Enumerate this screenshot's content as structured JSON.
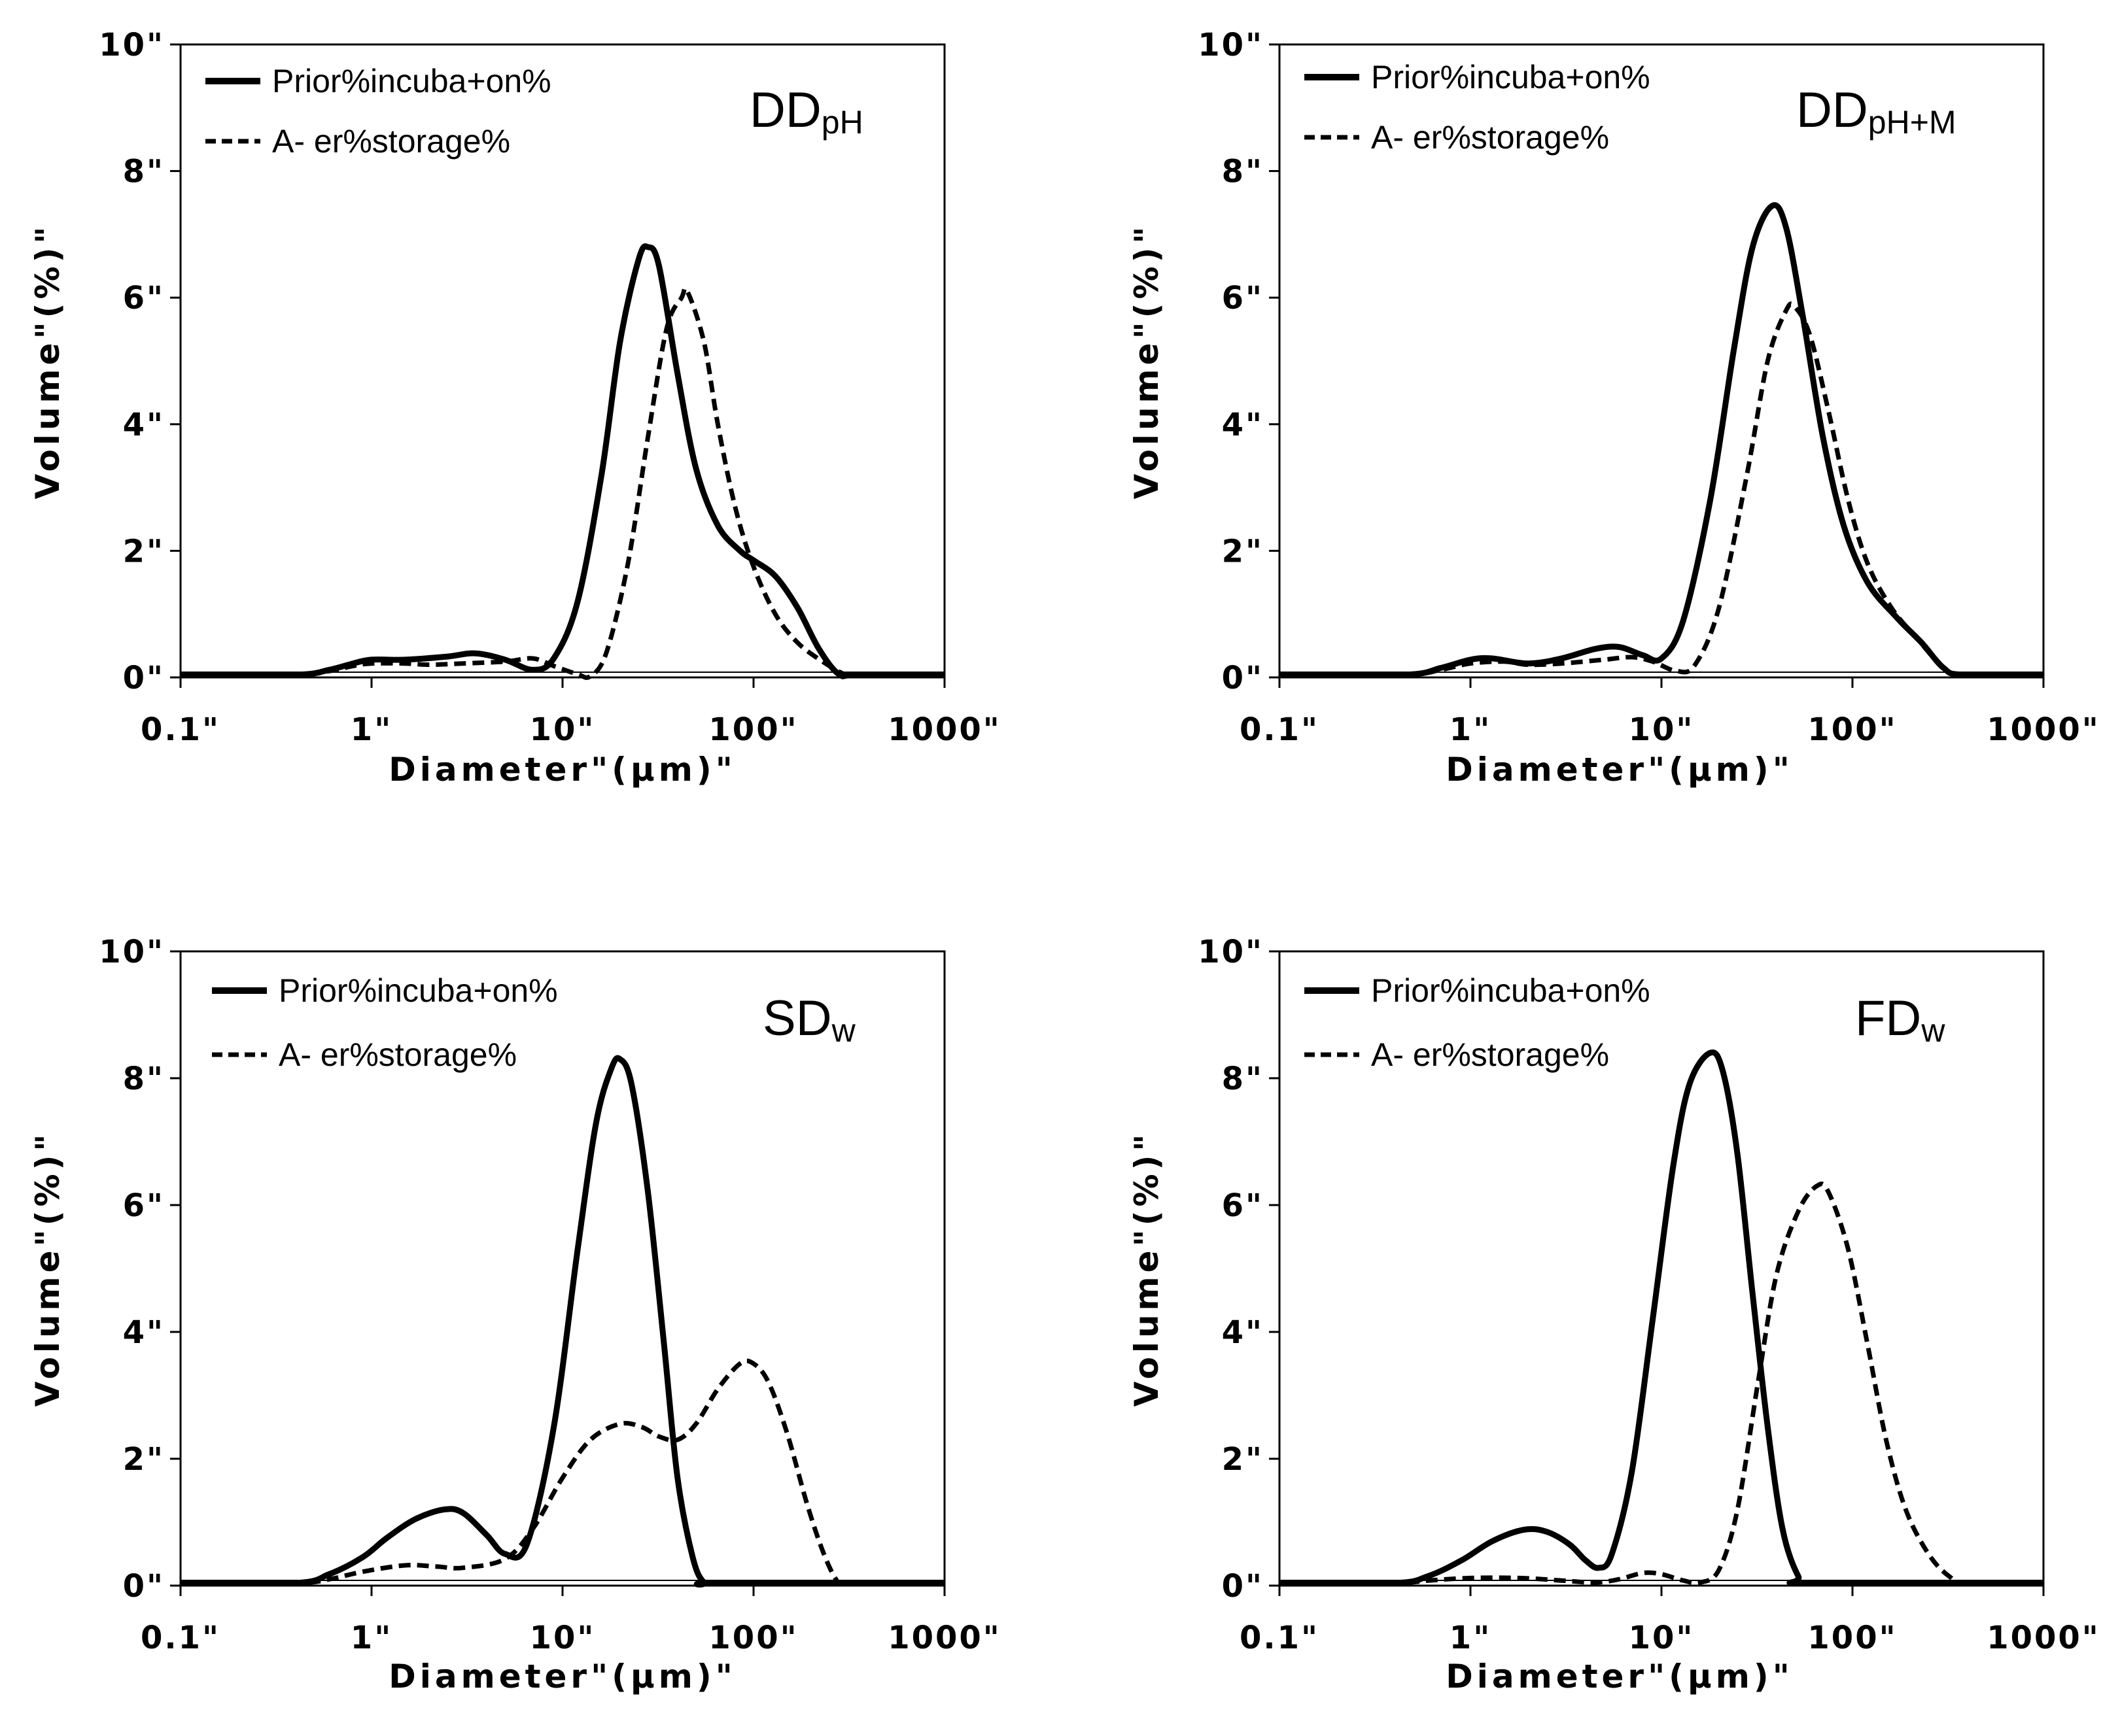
{
  "chart_data": [
    {
      "type": "line",
      "panel_label": "DD",
      "panel_subscript": "pH",
      "xscale": "log",
      "xlim": [
        0.1,
        1000
      ],
      "ylim": [
        0,
        10
      ],
      "xlabel": "Diameter\"(µm)\"",
      "ylabel": "Volume\"(%)\"",
      "x_ticks": [
        "0.1\"",
        "1\"",
        "10\"",
        "100\"",
        "1000\""
      ],
      "y_ticks": [
        "0\"",
        "2\"",
        "4\"",
        "6\"",
        "8\"",
        "10\""
      ],
      "legend": [
        {
          "label": "Prior%incuba+on%",
          "style": "solid"
        },
        {
          "label": "A- er%storage%",
          "style": "dashed"
        }
      ],
      "series": [
        {
          "name": "Prior%incuba+on%",
          "style": "solid",
          "points": [
            [
              0.1,
              0
            ],
            [
              0.4,
              0
            ],
            [
              0.6,
              0.12
            ],
            [
              0.8,
              0.22
            ],
            [
              1,
              0.28
            ],
            [
              1.5,
              0.28
            ],
            [
              2.5,
              0.33
            ],
            [
              3.5,
              0.38
            ],
            [
              5,
              0.28
            ],
            [
              7,
              0.12
            ],
            [
              9,
              0.3
            ],
            [
              12,
              1.2
            ],
            [
              16,
              3.2
            ],
            [
              20,
              5.3
            ],
            [
              25,
              6.6
            ],
            [
              28,
              6.8
            ],
            [
              32,
              6.5
            ],
            [
              40,
              4.8
            ],
            [
              50,
              3.3
            ],
            [
              65,
              2.4
            ],
            [
              85,
              2.0
            ],
            [
              100,
              1.85
            ],
            [
              130,
              1.6
            ],
            [
              170,
              1.1
            ],
            [
              220,
              0.45
            ],
            [
              280,
              0.05
            ],
            [
              350,
              0
            ],
            [
              1000,
              0
            ]
          ]
        },
        {
          "name": "A- er%storage%",
          "style": "dashed",
          "points": [
            [
              0.1,
              0
            ],
            [
              0.4,
              0
            ],
            [
              0.6,
              0.1
            ],
            [
              0.8,
              0.18
            ],
            [
              1,
              0.22
            ],
            [
              1.5,
              0.22
            ],
            [
              2,
              0.2
            ],
            [
              3,
              0.22
            ],
            [
              5,
              0.25
            ],
            [
              7,
              0.3
            ],
            [
              9,
              0.18
            ],
            [
              12,
              0.05
            ],
            [
              14,
              0.02
            ],
            [
              17,
              0.4
            ],
            [
              22,
              1.8
            ],
            [
              28,
              3.8
            ],
            [
              35,
              5.5
            ],
            [
              42,
              6.0
            ],
            [
              45,
              6.1
            ],
            [
              55,
              5.3
            ],
            [
              65,
              4.0
            ],
            [
              80,
              2.7
            ],
            [
              100,
              1.75
            ],
            [
              130,
              1.0
            ],
            [
              170,
              0.55
            ],
            [
              230,
              0.25
            ],
            [
              300,
              0.05
            ],
            [
              350,
              0
            ],
            [
              1000,
              0
            ]
          ]
        }
      ]
    },
    {
      "type": "line",
      "panel_label": "DD",
      "panel_subscript": "pH+M",
      "xscale": "log",
      "xlim": [
        0.1,
        1000
      ],
      "ylim": [
        0,
        10
      ],
      "xlabel": "Diameter\"(µm)\"",
      "ylabel": "Volume\"(%)\"",
      "x_ticks": [
        "0.1\"",
        "1\"",
        "10\"",
        "100\"",
        "1000\""
      ],
      "y_ticks": [
        "0\"",
        "2\"",
        "4\"",
        "6\"",
        "8\"",
        "10\""
      ],
      "legend": [
        {
          "label": "Prior%incuba+on%",
          "style": "solid"
        },
        {
          "label": "A- er%storage%",
          "style": "dashed"
        }
      ],
      "series": [
        {
          "name": "Prior%incuba+on%",
          "style": "solid",
          "points": [
            [
              0.1,
              0
            ],
            [
              0.45,
              0
            ],
            [
              0.7,
              0.15
            ],
            [
              1,
              0.28
            ],
            [
              1.3,
              0.3
            ],
            [
              2,
              0.22
            ],
            [
              3,
              0.3
            ],
            [
              4.5,
              0.45
            ],
            [
              6,
              0.48
            ],
            [
              8,
              0.35
            ],
            [
              10,
              0.3
            ],
            [
              13,
              0.9
            ],
            [
              18,
              2.8
            ],
            [
              24,
              5.2
            ],
            [
              30,
              6.8
            ],
            [
              38,
              7.45
            ],
            [
              45,
              7.1
            ],
            [
              55,
              5.7
            ],
            [
              70,
              3.8
            ],
            [
              90,
              2.4
            ],
            [
              120,
              1.5
            ],
            [
              170,
              0.95
            ],
            [
              230,
              0.55
            ],
            [
              300,
              0.15
            ],
            [
              380,
              0
            ],
            [
              1000,
              0
            ]
          ]
        },
        {
          "name": "A- er%storage%",
          "style": "dashed",
          "points": [
            [
              0.1,
              0
            ],
            [
              0.45,
              0
            ],
            [
              0.7,
              0.12
            ],
            [
              1,
              0.22
            ],
            [
              1.5,
              0.25
            ],
            [
              2,
              0.2
            ],
            [
              3,
              0.22
            ],
            [
              5,
              0.28
            ],
            [
              7,
              0.32
            ],
            [
              9,
              0.25
            ],
            [
              12,
              0.1
            ],
            [
              15,
              0.2
            ],
            [
              20,
              1.1
            ],
            [
              28,
              3.2
            ],
            [
              36,
              5.0
            ],
            [
              45,
              5.8
            ],
            [
              50,
              5.85
            ],
            [
              60,
              5.4
            ],
            [
              75,
              4.2
            ],
            [
              95,
              2.8
            ],
            [
              120,
              1.8
            ],
            [
              160,
              1.1
            ],
            [
              220,
              0.6
            ],
            [
              300,
              0.15
            ],
            [
              380,
              0
            ],
            [
              1000,
              0
            ]
          ]
        }
      ]
    },
    {
      "type": "line",
      "panel_label": "SD",
      "panel_subscript": "w",
      "xscale": "log",
      "xlim": [
        0.1,
        1000
      ],
      "ylim": [
        0,
        10
      ],
      "xlabel": "Diameter\"(µm)\"",
      "ylabel": "Volume\"(%)\"",
      "x_ticks": [
        "0.1\"",
        "1\"",
        "10\"",
        "100\"",
        "1000\""
      ],
      "y_ticks": [
        "0\"",
        "2\"",
        "4\"",
        "6\"",
        "8\"",
        "10\""
      ],
      "legend": [
        {
          "label": "Prior%incuba+on%",
          "style": "solid"
        },
        {
          "label": "A- er%storage%",
          "style": "dashed"
        }
      ],
      "series": [
        {
          "name": "Prior%incuba+on%",
          "style": "solid",
          "points": [
            [
              0.1,
              0
            ],
            [
              0.4,
              0
            ],
            [
              0.6,
              0.18
            ],
            [
              0.9,
              0.45
            ],
            [
              1.2,
              0.75
            ],
            [
              1.7,
              1.05
            ],
            [
              2.4,
              1.2
            ],
            [
              3,
              1.15
            ],
            [
              4,
              0.8
            ],
            [
              5,
              0.5
            ],
            [
              6.5,
              0.65
            ],
            [
              9,
              2.5
            ],
            [
              12,
              5.3
            ],
            [
              15,
              7.3
            ],
            [
              18,
              8.15
            ],
            [
              20,
              8.3
            ],
            [
              23,
              7.9
            ],
            [
              28,
              6.2
            ],
            [
              34,
              3.8
            ],
            [
              40,
              1.7
            ],
            [
              48,
              0.45
            ],
            [
              55,
              0.05
            ],
            [
              65,
              0
            ],
            [
              1000,
              0
            ]
          ]
        },
        {
          "name": "A- er%storage%",
          "style": "dashed",
          "points": [
            [
              0.1,
              0
            ],
            [
              0.4,
              0
            ],
            [
              0.6,
              0.1
            ],
            [
              0.9,
              0.22
            ],
            [
              1.5,
              0.32
            ],
            [
              2.2,
              0.3
            ],
            [
              3,
              0.28
            ],
            [
              5,
              0.42
            ],
            [
              7,
              0.9
            ],
            [
              10,
              1.7
            ],
            [
              14,
              2.3
            ],
            [
              20,
              2.55
            ],
            [
              26,
              2.5
            ],
            [
              32,
              2.35
            ],
            [
              40,
              2.3
            ],
            [
              50,
              2.55
            ],
            [
              65,
              3.1
            ],
            [
              85,
              3.5
            ],
            [
              100,
              3.5
            ],
            [
              120,
              3.2
            ],
            [
              150,
              2.4
            ],
            [
              190,
              1.3
            ],
            [
              230,
              0.55
            ],
            [
              270,
              0.1
            ],
            [
              300,
              0
            ],
            [
              1000,
              0
            ]
          ]
        }
      ]
    },
    {
      "type": "line",
      "panel_label": "FD",
      "panel_subscript": "w",
      "xscale": "log",
      "xlim": [
        0.1,
        1000
      ],
      "ylim": [
        0,
        10
      ],
      "xlabel": "Diameter\"(µm)\"",
      "ylabel": "Volume\"(%)\"",
      "x_ticks": [
        "0.1\"",
        "1\"",
        "10\"",
        "100\"",
        "1000\""
      ],
      "y_ticks": [
        "0\"",
        "2\"",
        "4\"",
        "6\"",
        "8\"",
        "10\""
      ],
      "legend": [
        {
          "label": "Prior%incuba+on%",
          "style": "solid"
        },
        {
          "label": "A- er%storage%",
          "style": "dashed"
        }
      ],
      "series": [
        {
          "name": "Prior%incuba+on%",
          "style": "solid",
          "points": [
            [
              0.1,
              0
            ],
            [
              0.4,
              0
            ],
            [
              0.6,
              0.15
            ],
            [
              0.9,
              0.4
            ],
            [
              1.3,
              0.7
            ],
            [
              1.9,
              0.88
            ],
            [
              2.5,
              0.85
            ],
            [
              3.3,
              0.65
            ],
            [
              4,
              0.4
            ],
            [
              4.7,
              0.28
            ],
            [
              5.5,
              0.5
            ],
            [
              7,
              1.8
            ],
            [
              9,
              4.2
            ],
            [
              11.5,
              6.6
            ],
            [
              14,
              7.9
            ],
            [
              18,
              8.4
            ],
            [
              21,
              8.1
            ],
            [
              25,
              6.8
            ],
            [
              30,
              4.6
            ],
            [
              36,
              2.5
            ],
            [
              43,
              0.9
            ],
            [
              52,
              0.15
            ],
            [
              60,
              0
            ],
            [
              1000,
              0
            ]
          ]
        },
        {
          "name": "A- er%storage%",
          "style": "dashed",
          "points": [
            [
              0.1,
              0
            ],
            [
              0.4,
              0
            ],
            [
              0.6,
              0.08
            ],
            [
              1,
              0.12
            ],
            [
              1.8,
              0.12
            ],
            [
              3,
              0.08
            ],
            [
              4.5,
              0.05
            ],
            [
              6,
              0.1
            ],
            [
              8,
              0.2
            ],
            [
              10,
              0.18
            ],
            [
              13,
              0.08
            ],
            [
              16,
              0.05
            ],
            [
              20,
              0.25
            ],
            [
              25,
              1.2
            ],
            [
              32,
              3.2
            ],
            [
              40,
              4.9
            ],
            [
              52,
              5.9
            ],
            [
              65,
              6.3
            ],
            [
              75,
              6.2
            ],
            [
              95,
              5.3
            ],
            [
              120,
              3.8
            ],
            [
              150,
              2.3
            ],
            [
              190,
              1.2
            ],
            [
              250,
              0.5
            ],
            [
              320,
              0.15
            ],
            [
              400,
              0
            ],
            [
              1000,
              0
            ]
          ]
        }
      ]
    }
  ]
}
